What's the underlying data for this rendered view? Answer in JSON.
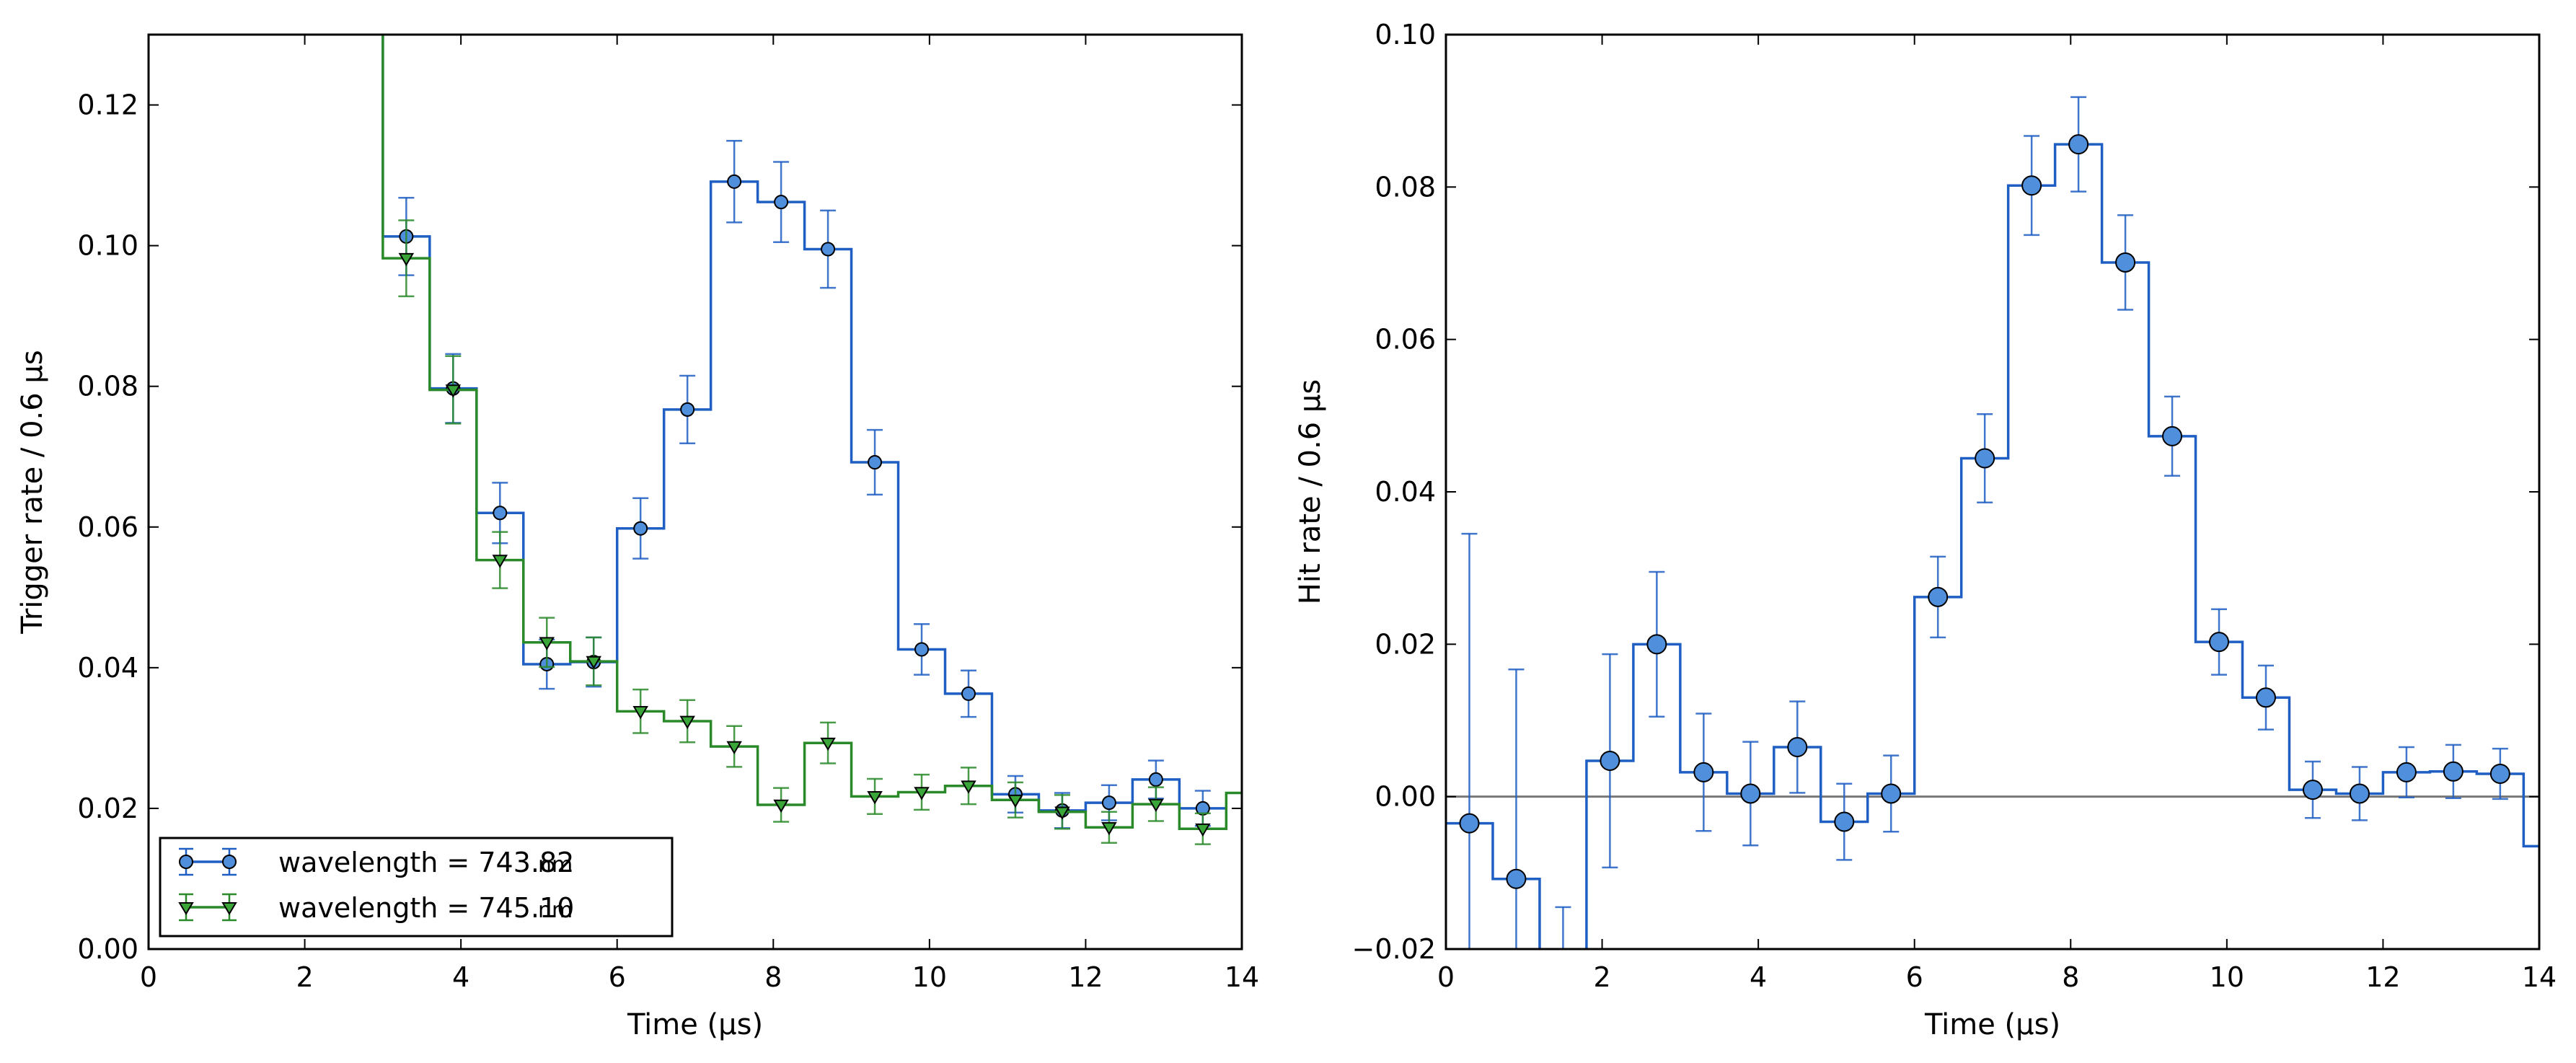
{
  "chart_data": [
    {
      "type": "line",
      "drawstyle": "steps-mid",
      "xlabel": "Time (µs)",
      "ylabel": "Trigger rate / 0.6 µs",
      "xlim": [
        0,
        14
      ],
      "ylim": [
        0,
        0.13
      ],
      "xticks": [
        0,
        2,
        4,
        6,
        8,
        10,
        12,
        14
      ],
      "xtick_labels": [
        "0",
        "2",
        "4",
        "6",
        "8",
        "10",
        "12",
        "14"
      ],
      "yticks": [
        0,
        0.02,
        0.04,
        0.06,
        0.08,
        0.1,
        0.12
      ],
      "ytick_labels": [
        "0.00",
        "0.02",
        "0.04",
        "0.06",
        "0.08",
        "0.10",
        "0.12"
      ],
      "grid": false,
      "legend": "lower-left",
      "x": [
        3.3,
        3.9,
        4.5,
        5.1,
        5.7,
        6.3,
        6.9,
        7.5,
        8.1,
        8.7,
        9.3,
        9.9,
        10.5,
        11.1,
        11.7,
        12.3,
        12.9,
        13.5
      ],
      "series": [
        {
          "name": "wavelength = 743.82",
          "unit": "nm",
          "color": "#1f5fc4",
          "marker": "circle",
          "marker_fill": "#4f8fdc",
          "values": [
            0.1013,
            0.0797,
            0.062,
            0.0405,
            0.0408,
            0.0598,
            0.0767,
            0.1091,
            0.1062,
            0.0995,
            0.0692,
            0.0426,
            0.0363,
            0.022,
            0.0197,
            0.0208,
            0.0241,
            0.02
          ],
          "errors": [
            0.0055,
            0.0049,
            0.0043,
            0.0035,
            0.0035,
            0.0043,
            0.0048,
            0.0058,
            0.0057,
            0.0055,
            0.0046,
            0.0036,
            0.0033,
            0.0026,
            0.0025,
            0.0025,
            0.0027,
            0.0025
          ],
          "step_left_edge_value": 0.13
        },
        {
          "name": "wavelength = 745.10",
          "unit": "nm",
          "color": "#2a8a2a",
          "marker": "triangle-down",
          "marker_fill": "#3aa63a",
          "values": [
            0.0982,
            0.0795,
            0.0553,
            0.0436,
            0.0409,
            0.0338,
            0.0324,
            0.0288,
            0.0205,
            0.0293,
            0.0217,
            0.0223,
            0.0232,
            0.0212,
            0.0195,
            0.0173,
            0.0206,
            0.0171
          ],
          "errors": [
            0.0054,
            0.0048,
            0.004,
            0.0035,
            0.0034,
            0.0031,
            0.003,
            0.0029,
            0.0024,
            0.0029,
            0.0025,
            0.0025,
            0.0026,
            0.0025,
            0.0024,
            0.0022,
            0.0024,
            0.0022
          ],
          "step_left_edge_value": 0.13,
          "step_right_tail_value": 0.0222
        }
      ]
    },
    {
      "type": "line",
      "drawstyle": "steps-mid",
      "xlabel": "Time (µs)",
      "ylabel": "Hit rate / 0.6 µs",
      "xlim": [
        0,
        14
      ],
      "ylim": [
        -0.02,
        0.1
      ],
      "xticks": [
        0,
        2,
        4,
        6,
        8,
        10,
        12,
        14
      ],
      "xtick_labels": [
        "0",
        "2",
        "4",
        "6",
        "8",
        "10",
        "12",
        "14"
      ],
      "yticks": [
        -0.02,
        0.0,
        0.02,
        0.04,
        0.06,
        0.08,
        0.1
      ],
      "ytick_labels": [
        "−0.02",
        "0.00",
        "0.02",
        "0.04",
        "0.06",
        "0.08",
        "0.10"
      ],
      "grid": false,
      "reference_line_y": 0.0,
      "x": [
        0.3,
        0.9,
        1.5,
        2.1,
        2.7,
        3.3,
        3.9,
        4.5,
        5.1,
        5.7,
        6.3,
        6.9,
        7.5,
        8.1,
        8.7,
        9.3,
        9.9,
        10.5,
        11.1,
        11.7,
        12.3,
        12.9,
        13.5,
        14.1
      ],
      "series": [
        {
          "name": "hit rate",
          "color": "#1f5fc4",
          "marker": "circle",
          "marker_fill": "#4f8fdc",
          "values": [
            -0.0035,
            -0.0108,
            -0.025,
            0.0047,
            0.02,
            0.0032,
            0.0004,
            0.0065,
            -0.0033,
            0.0004,
            0.0262,
            0.0444,
            0.0802,
            0.0856,
            0.0701,
            0.0473,
            0.0203,
            0.013,
            0.0009,
            0.0004,
            0.0032,
            0.0033,
            0.003,
            -0.0065
          ],
          "errors": [
            0.038,
            0.0275,
            0.0105,
            0.014,
            0.0095,
            0.0077,
            0.0068,
            0.006,
            0.005,
            0.005,
            0.0053,
            0.0058,
            0.0065,
            0.0062,
            0.0062,
            0.0052,
            0.0043,
            0.0042,
            0.0037,
            0.0035,
            0.0033,
            0.0035,
            0.0033,
            0.0
          ],
          "marker_visible": [
            true,
            true,
            false,
            true,
            true,
            true,
            true,
            true,
            true,
            true,
            true,
            true,
            true,
            true,
            true,
            true,
            true,
            true,
            true,
            true,
            true,
            true,
            true,
            false
          ],
          "step_left_edge_value": -0.0035
        }
      ]
    }
  ]
}
